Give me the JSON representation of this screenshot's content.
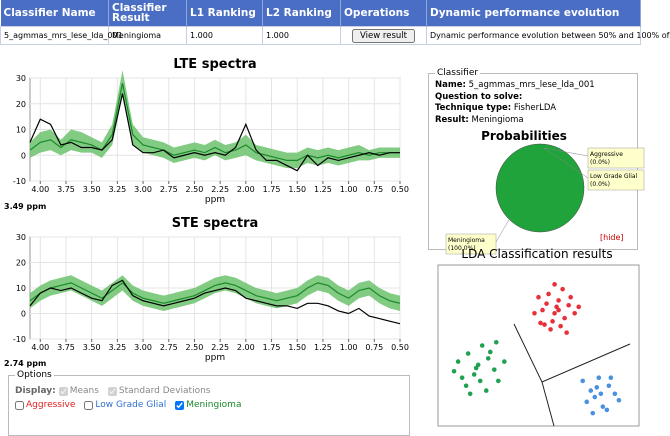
{
  "table": {
    "headers": [
      "Classifier Name",
      "Classifier Result",
      "L1 Ranking",
      "L2 Ranking",
      "Operations",
      "Dynamic performance evolution"
    ],
    "row": [
      "5_agmmas_mrs_lese_lda_001",
      "Meningioma",
      "1.000",
      "1.000",
      "View result",
      "Dynamic performance evolution between 50% and 100% of"
    ]
  },
  "lte": {
    "type": "line",
    "title": "LTE spectra",
    "xlabel": "ppm",
    "point_label": "3.49 ppm",
    "x": [
      4.1,
      4.0,
      3.9,
      3.8,
      3.7,
      3.6,
      3.5,
      3.4,
      3.3,
      3.2,
      3.1,
      3.0,
      2.9,
      2.8,
      2.7,
      2.6,
      2.5,
      2.4,
      2.3,
      2.2,
      2.1,
      2.0,
      1.9,
      1.8,
      1.7,
      1.6,
      1.5,
      1.4,
      1.3,
      1.2,
      1.1,
      1.0,
      0.9,
      0.8,
      0.7,
      0.6,
      0.5
    ],
    "series": [
      {
        "color": "#000000",
        "values": [
          5,
          14,
          12,
          4,
          5,
          3,
          3,
          2,
          6,
          24,
          4,
          1,
          1,
          2,
          -1,
          0,
          1,
          0,
          1,
          0,
          3,
          12,
          2,
          -2,
          -2,
          -4,
          -6,
          0,
          -4,
          -1,
          -2,
          -1,
          0,
          1,
          0,
          1,
          1
        ]
      },
      {
        "name": "Means",
        "color": "#1a8a2a",
        "values": [
          2,
          5,
          6,
          3,
          6,
          5,
          4,
          2,
          8,
          28,
          8,
          4,
          3,
          2,
          0,
          1,
          2,
          1,
          3,
          1,
          2,
          4,
          1,
          0,
          -1,
          -2,
          -2,
          0,
          -1,
          0,
          -1,
          0,
          1,
          0,
          1,
          1,
          1
        ]
      },
      {
        "name": "Standard Deviations",
        "color": "#6cc26c",
        "values": [
          3,
          4,
          4,
          3,
          4,
          4,
          3,
          3,
          4,
          5,
          4,
          3,
          3,
          3,
          3,
          3,
          3,
          3,
          3,
          3,
          3,
          4,
          3,
          3,
          3,
          3,
          3,
          3,
          3,
          3,
          3,
          3,
          3,
          2,
          2,
          2,
          2
        ]
      }
    ],
    "xlim": [
      4.1,
      0.5
    ],
    "ylim": [
      -10,
      30
    ],
    "yticks": [
      -10,
      0,
      10,
      20,
      30
    ],
    "xticks": [
      {
        "value": 4.0,
        "label": "4.00"
      },
      {
        "value": 3.75,
        "label": "3.75"
      },
      {
        "value": 3.5,
        "label": "3.50"
      },
      {
        "value": 3.25,
        "label": "3.25"
      },
      {
        "value": 3.0,
        "label": "3.00"
      },
      {
        "value": 2.75,
        "label": "2.75"
      },
      {
        "value": 2.5,
        "label": "2.50"
      },
      {
        "value": 2.25,
        "label": "2.25"
      },
      {
        "value": 2.0,
        "label": "2.00"
      },
      {
        "value": 1.75,
        "label": "1.75"
      },
      {
        "value": 1.5,
        "label": "1.50"
      },
      {
        "value": 1.25,
        "label": "1.25"
      },
      {
        "value": 1.0,
        "label": "1.00"
      },
      {
        "value": 0.75,
        "label": "0.75"
      },
      {
        "value": 0.5,
        "label": "0.50"
      }
    ],
    "grid": true
  },
  "ste": {
    "type": "line",
    "title": "STE spectra",
    "xlabel": "ppm",
    "point_label": "2.74 ppm",
    "x": [
      4.1,
      4.0,
      3.9,
      3.8,
      3.7,
      3.6,
      3.5,
      3.4,
      3.3,
      3.2,
      3.1,
      3.0,
      2.9,
      2.8,
      2.7,
      2.6,
      2.5,
      2.4,
      2.3,
      2.2,
      2.1,
      2.0,
      1.9,
      1.8,
      1.7,
      1.6,
      1.5,
      1.4,
      1.3,
      1.2,
      1.1,
      1.0,
      0.9,
      0.8,
      0.7,
      0.6,
      0.5
    ],
    "series": [
      {
        "color": "#000000",
        "values": [
          3,
          8,
          10,
          9,
          10,
          8,
          6,
          5,
          11,
          13,
          7,
          5,
          4,
          3,
          4,
          5,
          6,
          8,
          9,
          10,
          9,
          6,
          5,
          4,
          3,
          3,
          2,
          4,
          4,
          3,
          1,
          0,
          2,
          -1,
          -2,
          -3,
          -4
        ]
      },
      {
        "name": "Means",
        "color": "#1a8a2a",
        "values": [
          5,
          8,
          10,
          11,
          12,
          10,
          8,
          6,
          9,
          12,
          8,
          6,
          5,
          4,
          5,
          6,
          7,
          9,
          11,
          12,
          11,
          9,
          7,
          6,
          5,
          6,
          7,
          10,
          12,
          11,
          8,
          6,
          9,
          10,
          7,
          5,
          4
        ]
      },
      {
        "name": "Standard Deviations",
        "color": "#6cc26c",
        "values": [
          3,
          3,
          3,
          3,
          3,
          3,
          3,
          3,
          3,
          3,
          3,
          3,
          3,
          3,
          3,
          3,
          3,
          3,
          3,
          3,
          3,
          3,
          3,
          3,
          3,
          3,
          3,
          3,
          3,
          3,
          3,
          3,
          3,
          3,
          3,
          3,
          3
        ]
      }
    ],
    "xlim": [
      4.1,
      0.5
    ],
    "ylim": [
      -10,
      30
    ],
    "yticks": [
      -10,
      0,
      10,
      20,
      30
    ],
    "xticks": [
      {
        "value": 4.0,
        "label": "4.00"
      },
      {
        "value": 3.75,
        "label": "3.75"
      },
      {
        "value": 3.5,
        "label": "3.50"
      },
      {
        "value": 3.25,
        "label": "3.25"
      },
      {
        "value": 3.0,
        "label": "3.00"
      },
      {
        "value": 2.75,
        "label": "2.75"
      },
      {
        "value": 2.5,
        "label": "2.50"
      },
      {
        "value": 2.25,
        "label": "2.25"
      },
      {
        "value": 2.0,
        "label": "2.00"
      },
      {
        "value": 1.75,
        "label": "1.75"
      },
      {
        "value": 1.5,
        "label": "1.50"
      },
      {
        "value": 1.25,
        "label": "1.25"
      },
      {
        "value": 1.0,
        "label": "1.00"
      },
      {
        "value": 0.75,
        "label": "0.75"
      },
      {
        "value": 0.5,
        "label": "0.50"
      }
    ],
    "grid": true
  },
  "options": {
    "legend": "Options",
    "display_label": "Display:",
    "display": [
      {
        "label": "Means",
        "checked": true
      },
      {
        "label": "Standard Deviations",
        "checked": true
      }
    ],
    "classes": [
      {
        "label": "Aggressive",
        "color": "#e02020",
        "checked": false
      },
      {
        "label": "Low Grade Glial",
        "color": "#3070d0",
        "checked": false
      },
      {
        "label": "Meningioma",
        "color": "#1a8a2a",
        "checked": true
      }
    ]
  },
  "classifier": {
    "legend": "Classifier",
    "lines": [
      {
        "label": "Name:",
        "value": "5_agmmas_mrs_lese_lda_001"
      },
      {
        "label": "Question to solve:"
      },
      {
        "label": "Technique type:",
        "value": "FisherLDA"
      },
      {
        "label": "Result:",
        "value": "Meningioma"
      }
    ]
  },
  "pie": {
    "type": "pie",
    "title": "Probabilities",
    "categories": [
      "Aggressive",
      "Low Grade Glial",
      "Meningioma"
    ],
    "values": [
      0,
      0,
      100
    ],
    "value_labels": [
      "(0.0%)",
      "(0.0%)",
      "(100.0%)"
    ],
    "colors": [
      "#e02020",
      "#3070d0",
      "#1fa33a"
    ]
  },
  "hide": "[hide]",
  "lda": {
    "type": "scatter",
    "title": "LDA Classification results",
    "series": [
      {
        "name": "Aggressive",
        "color": "#e8303a",
        "x": [
          50,
          55,
          60,
          65,
          58,
          62,
          52,
          57,
          68,
          54,
          61,
          66,
          48,
          59,
          63,
          56,
          70,
          53,
          64,
          60,
          58,
          51
        ],
        "y": [
          20,
          18,
          22,
          25,
          30,
          15,
          28,
          35,
          30,
          24,
          38,
          20,
          30,
          26,
          33,
          40,
          26,
          37,
          42,
          28,
          12,
          36
        ]
      },
      {
        "name": "Low Grade Glial",
        "color": "#4a90e0",
        "x": [
          72,
          76,
          80,
          85,
          78,
          82,
          88,
          74,
          84,
          79,
          90,
          77,
          86,
          81
        ],
        "y": [
          72,
          78,
          70,
          75,
          82,
          88,
          80,
          85,
          90,
          76,
          84,
          92,
          70,
          80
        ]
      },
      {
        "name": "Meningioma",
        "color": "#20a050",
        "x": [
          10,
          15,
          20,
          25,
          12,
          18,
          22,
          28,
          30,
          14,
          24,
          19,
          8,
          26,
          33,
          16,
          21,
          29
        ],
        "y": [
          60,
          55,
          62,
          58,
          70,
          68,
          50,
          65,
          72,
          75,
          78,
          64,
          66,
          54,
          60,
          80,
          72,
          48
        ]
      }
    ]
  }
}
